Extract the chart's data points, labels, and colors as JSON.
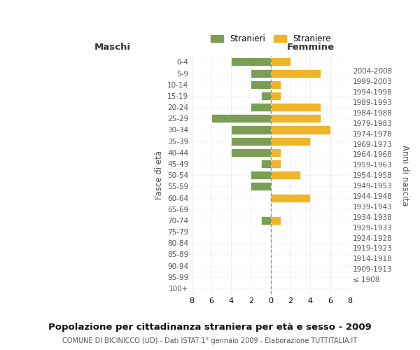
{
  "age_groups": [
    "100+",
    "95-99",
    "90-94",
    "85-89",
    "80-84",
    "75-79",
    "70-74",
    "65-69",
    "60-64",
    "55-59",
    "50-54",
    "45-49",
    "40-44",
    "35-39",
    "30-34",
    "25-29",
    "20-24",
    "15-19",
    "10-14",
    "5-9",
    "0-4"
  ],
  "birth_years": [
    "≤ 1908",
    "1909-1913",
    "1914-1918",
    "1919-1923",
    "1924-1928",
    "1929-1933",
    "1934-1938",
    "1939-1943",
    "1944-1948",
    "1949-1953",
    "1954-1958",
    "1959-1963",
    "1964-1968",
    "1969-1973",
    "1974-1978",
    "1979-1983",
    "1984-1988",
    "1989-1993",
    "1994-1998",
    "1999-2003",
    "2004-2008"
  ],
  "males": [
    0,
    0,
    0,
    0,
    0,
    0,
    1,
    0,
    0,
    2,
    2,
    1,
    4,
    4,
    4,
    6,
    2,
    1,
    2,
    2,
    4
  ],
  "females": [
    0,
    0,
    0,
    0,
    0,
    0,
    1,
    0,
    4,
    0,
    3,
    1,
    1,
    4,
    6,
    5,
    5,
    1,
    1,
    5,
    2
  ],
  "male_color": "#7a9e54",
  "female_color": "#f0b429",
  "title": "Popolazione per cittadinanza straniera per età e sesso - 2009",
  "subtitle": "COMUNE DI BICINICCO (UD) - Dati ISTAT 1° gennaio 2009 - Elaborazione TUTTITALIA.IT",
  "xlabel_left": "Maschi",
  "xlabel_right": "Femmine",
  "ylabel_left": "Fasce di età",
  "ylabel_right": "Anni di nascita",
  "legend_male": "Stranieri",
  "legend_female": "Straniere",
  "xlim": 8,
  "background_color": "#ffffff",
  "grid_color": "#cccccc"
}
